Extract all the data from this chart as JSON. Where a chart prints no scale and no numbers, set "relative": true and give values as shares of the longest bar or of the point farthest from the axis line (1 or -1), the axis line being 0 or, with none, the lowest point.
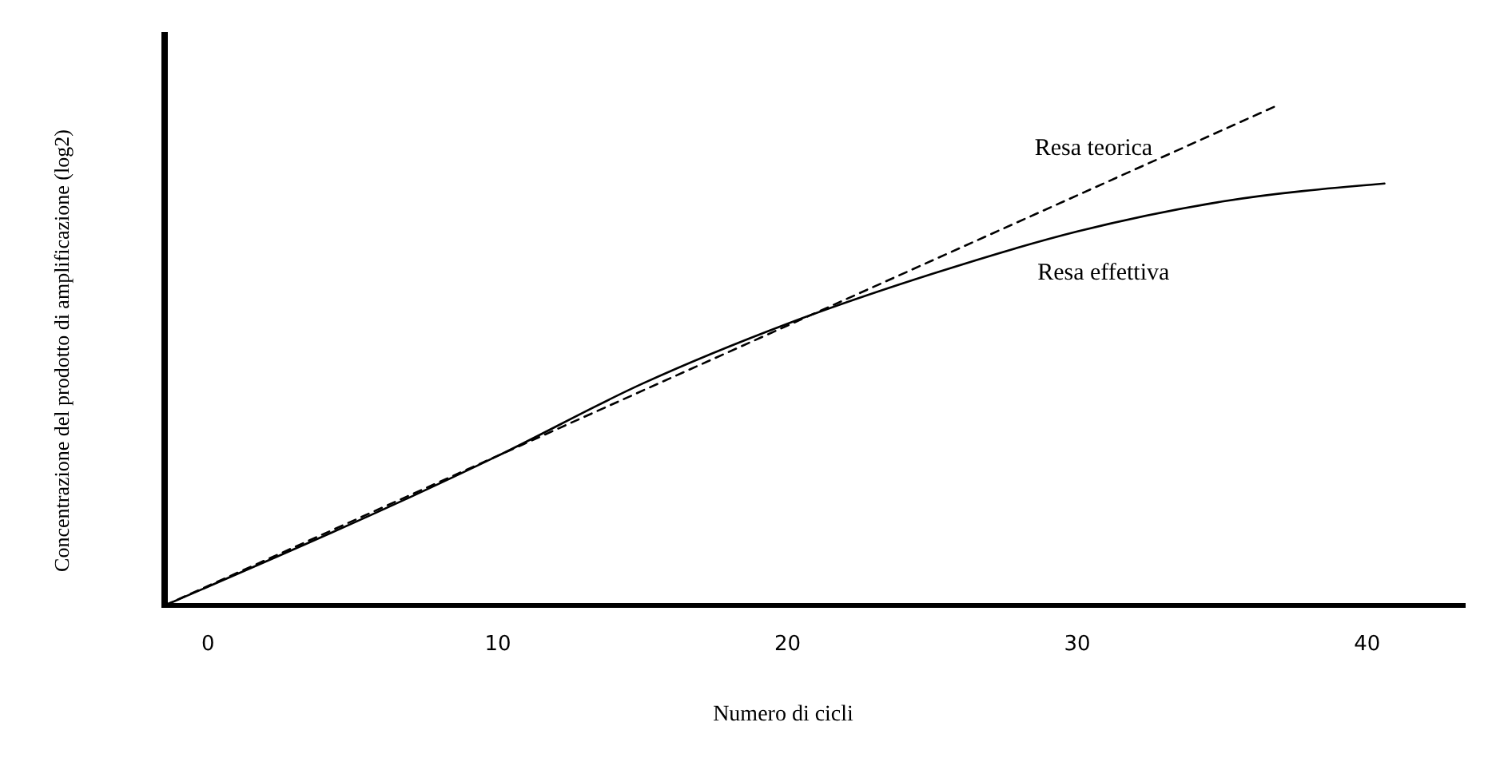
{
  "chart_data": {
    "type": "line",
    "relative": true,
    "xlabel": "Numero di cicli",
    "ylabel": "Concentrazione del prodotto di amplificazione (log2)",
    "xlim": [
      -1.5,
      43.4
    ],
    "xticks": [
      0,
      10,
      20,
      30,
      40
    ],
    "legend": false,
    "grid": false,
    "series": [
      {
        "name": "Resa teorica",
        "color": "#000000",
        "line_style": "dashed",
        "x": [
          -1.5,
          36.8
        ],
        "values": [
          0,
          1
        ]
      },
      {
        "name": "Resa effettiva",
        "color": "#000000",
        "line_style": "solid",
        "x": [
          -1.5,
          10,
          15,
          20,
          25,
          30,
          35,
          40.6
        ],
        "values": [
          0,
          0.3,
          0.445,
          0.565,
          0.665,
          0.75,
          0.81,
          0.846
        ]
      }
    ]
  }
}
